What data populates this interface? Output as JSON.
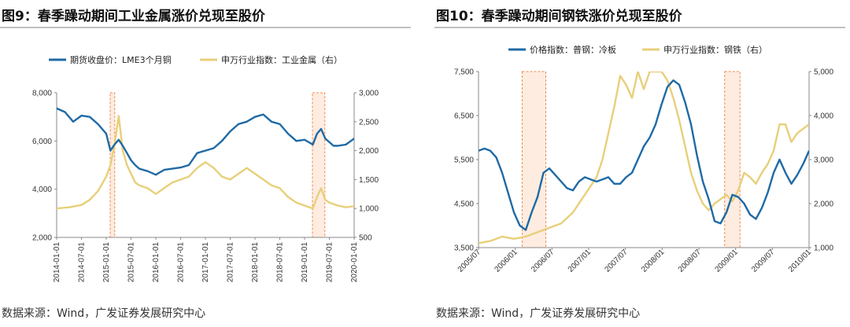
{
  "left": {
    "title": "图9：春季躁动期间工业金属涨价兑现至股价",
    "source": "数据来源：Wind，广发证券发展研究中心"
  },
  "right": {
    "title": "图10：春季躁动期间钢铁涨价兑现至股价",
    "source": "数据来源：Wind，广发证券发展研究中心"
  },
  "colors": {
    "primary": "#1f6aa5",
    "secondary": "#e8cf7a",
    "highlight_fill": "#fde5d5",
    "highlight_border": "#f08a50"
  },
  "chart_data": [
    {
      "type": "line",
      "title": "图9：春季躁动期间工业金属涨价兑现至股价",
      "x_ticks": [
        "2014-01-01",
        "2014-07-01",
        "2015-01-01",
        "2015-07-01",
        "2016-01-01",
        "2016-07-01",
        "2017-01-01",
        "2017-07-01",
        "2018-01-01",
        "2018-07-01",
        "2019-01-01",
        "2019-07-01",
        "2020-01-01"
      ],
      "y_left": {
        "ticks": [
          "2,000",
          "4,000",
          "6,000",
          "8,000"
        ],
        "range": [
          2000,
          8000
        ]
      },
      "y_right": {
        "ticks": [
          "500",
          "1,000",
          "1,500",
          "2,000",
          "2,500",
          "3,000"
        ],
        "range": [
          500,
          3000
        ]
      },
      "highlights": [
        {
          "from": 12.95,
          "to": 14.05
        },
        {
          "from": 61.9,
          "to": 64.9
        }
      ],
      "series": [
        {
          "name": "期货收盘价：LME3个月铜",
          "axis": "left",
          "color": "#1f6aa5",
          "points": [
            [
              0,
              7350
            ],
            [
              2,
              7200
            ],
            [
              4,
              6800
            ],
            [
              6,
              7050
            ],
            [
              8,
              7000
            ],
            [
              10,
              6700
            ],
            [
              12,
              6300
            ],
            [
              13,
              5600
            ],
            [
              14,
              5850
            ],
            [
              15,
              6050
            ],
            [
              16,
              5800
            ],
            [
              17,
              5500
            ],
            [
              18,
              5200
            ],
            [
              19,
              5000
            ],
            [
              20,
              4850
            ],
            [
              22,
              4750
            ],
            [
              24,
              4600
            ],
            [
              26,
              4800
            ],
            [
              28,
              4850
            ],
            [
              30,
              4900
            ],
            [
              32,
              5000
            ],
            [
              34,
              5500
            ],
            [
              36,
              5600
            ],
            [
              38,
              5700
            ],
            [
              40,
              6000
            ],
            [
              42,
              6400
            ],
            [
              44,
              6700
            ],
            [
              46,
              6800
            ],
            [
              48,
              7000
            ],
            [
              50,
              7100
            ],
            [
              52,
              6800
            ],
            [
              54,
              6700
            ],
            [
              55,
              6500
            ],
            [
              56,
              6300
            ],
            [
              57,
              6150
            ],
            [
              58,
              6000
            ],
            [
              60,
              6050
            ],
            [
              61,
              5950
            ],
            [
              62,
              5850
            ],
            [
              63,
              6300
            ],
            [
              64,
              6500
            ],
            [
              65,
              6100
            ],
            [
              66,
              5950
            ],
            [
              67,
              5800
            ],
            [
              68,
              5800
            ],
            [
              70,
              5850
            ],
            [
              72,
              6100
            ]
          ]
        },
        {
          "name": "申万行业指数：工业金属（右）",
          "axis": "right",
          "color": "#e8cf7a",
          "points": [
            [
              0,
              1000
            ],
            [
              3,
              1020
            ],
            [
              6,
              1060
            ],
            [
              8,
              1150
            ],
            [
              10,
              1300
            ],
            [
              12,
              1550
            ],
            [
              13,
              1750
            ],
            [
              14,
              2100
            ],
            [
              15,
              2600
            ],
            [
              16,
              2000
            ],
            [
              17,
              1750
            ],
            [
              18,
              1600
            ],
            [
              19,
              1450
            ],
            [
              20,
              1400
            ],
            [
              22,
              1350
            ],
            [
              24,
              1250
            ],
            [
              26,
              1350
            ],
            [
              28,
              1450
            ],
            [
              30,
              1500
            ],
            [
              32,
              1550
            ],
            [
              34,
              1700
            ],
            [
              36,
              1800
            ],
            [
              38,
              1700
            ],
            [
              40,
              1550
            ],
            [
              42,
              1500
            ],
            [
              44,
              1600
            ],
            [
              46,
              1700
            ],
            [
              48,
              1600
            ],
            [
              50,
              1500
            ],
            [
              52,
              1400
            ],
            [
              54,
              1350
            ],
            [
              56,
              1200
            ],
            [
              58,
              1100
            ],
            [
              60,
              1050
            ],
            [
              62,
              1000
            ],
            [
              63,
              1200
            ],
            [
              64,
              1350
            ],
            [
              65,
              1150
            ],
            [
              66,
              1100
            ],
            [
              68,
              1050
            ],
            [
              70,
              1020
            ],
            [
              72,
              1040
            ]
          ]
        }
      ]
    },
    {
      "type": "line",
      "title": "图10：春季躁动期间钢铁涨价兑现至股价",
      "x_ticks": [
        "2005/07",
        "2006/01",
        "2006/07",
        "2007/01",
        "2007/07",
        "2008/01",
        "2008/07",
        "2009/01",
        "2009/07",
        "2010/01"
      ],
      "y_left": {
        "ticks": [
          "3,500",
          "4,500",
          "5,500",
          "6,500",
          "7,500"
        ],
        "range": [
          3500,
          7500
        ]
      },
      "y_right": {
        "ticks": [
          "1,000",
          "2,000",
          "3,000",
          "4,000",
          "5,000"
        ],
        "range": [
          1000,
          5000
        ]
      },
      "highlights": [
        {
          "from": 7.4,
          "to": 11.4
        },
        {
          "from": 41.7,
          "to": 44.3
        }
      ],
      "series": [
        {
          "name": "价格指数：普钢：冷板",
          "axis": "left",
          "color": "#1f6aa5",
          "points": [
            [
              0,
              5700
            ],
            [
              1,
              5750
            ],
            [
              2,
              5700
            ],
            [
              3,
              5550
            ],
            [
              4,
              5200
            ],
            [
              5,
              4750
            ],
            [
              6,
              4300
            ],
            [
              7,
              4000
            ],
            [
              8,
              3900
            ],
            [
              9,
              4300
            ],
            [
              10,
              4650
            ],
            [
              11,
              5200
            ],
            [
              12,
              5300
            ],
            [
              13,
              5150
            ],
            [
              14,
              5000
            ],
            [
              15,
              4850
            ],
            [
              16,
              4800
            ],
            [
              17,
              5000
            ],
            [
              18,
              5100
            ],
            [
              19,
              5050
            ],
            [
              20,
              5000
            ],
            [
              21,
              5050
            ],
            [
              22,
              5100
            ],
            [
              23,
              4950
            ],
            [
              24,
              4950
            ],
            [
              25,
              5100
            ],
            [
              26,
              5200
            ],
            [
              27,
              5500
            ],
            [
              28,
              5800
            ],
            [
              29,
              6000
            ],
            [
              30,
              6300
            ],
            [
              31,
              6750
            ],
            [
              32,
              7150
            ],
            [
              33,
              7300
            ],
            [
              34,
              7200
            ],
            [
              35,
              6800
            ],
            [
              36,
              6300
            ],
            [
              37,
              5600
            ],
            [
              38,
              5000
            ],
            [
              39,
              4600
            ],
            [
              40,
              4100
            ],
            [
              41,
              4050
            ],
            [
              42,
              4300
            ],
            [
              43,
              4700
            ],
            [
              44,
              4650
            ],
            [
              45,
              4500
            ],
            [
              46,
              4250
            ],
            [
              47,
              4150
            ],
            [
              48,
              4400
            ],
            [
              49,
              4750
            ],
            [
              50,
              5200
            ],
            [
              51,
              5500
            ],
            [
              52,
              5200
            ],
            [
              53,
              4950
            ],
            [
              54,
              5150
            ],
            [
              55,
              5400
            ],
            [
              56,
              5700
            ]
          ]
        },
        {
          "name": "申万行业指数：钢铁（右）",
          "axis": "right",
          "color": "#e8cf7a",
          "points": [
            [
              0,
              1100
            ],
            [
              2,
              1150
            ],
            [
              4,
              1250
            ],
            [
              6,
              1200
            ],
            [
              8,
              1250
            ],
            [
              10,
              1350
            ],
            [
              12,
              1450
            ],
            [
              14,
              1550
            ],
            [
              16,
              1800
            ],
            [
              18,
              2200
            ],
            [
              20,
              2600
            ],
            [
              21,
              3000
            ],
            [
              22,
              3600
            ],
            [
              23,
              4200
            ],
            [
              24,
              4900
            ],
            [
              25,
              4700
            ],
            [
              26,
              4400
            ],
            [
              27,
              5000
            ],
            [
              28,
              4600
            ],
            [
              29,
              5000
            ],
            [
              30,
              5000
            ],
            [
              31,
              5000
            ],
            [
              32,
              4800
            ],
            [
              33,
              4400
            ],
            [
              34,
              3900
            ],
            [
              35,
              3300
            ],
            [
              36,
              2700
            ],
            [
              37,
              2300
            ],
            [
              38,
              2000
            ],
            [
              39,
              1850
            ],
            [
              40,
              2000
            ],
            [
              41,
              2100
            ],
            [
              42,
              2200
            ],
            [
              43,
              2050
            ],
            [
              44,
              2300
            ],
            [
              45,
              2700
            ],
            [
              46,
              2600
            ],
            [
              47,
              2450
            ],
            [
              48,
              2700
            ],
            [
              49,
              2900
            ],
            [
              50,
              3200
            ],
            [
              51,
              3800
            ],
            [
              52,
              3800
            ],
            [
              53,
              3400
            ],
            [
              54,
              3600
            ],
            [
              55,
              3700
            ],
            [
              56,
              3800
            ]
          ]
        }
      ]
    }
  ]
}
